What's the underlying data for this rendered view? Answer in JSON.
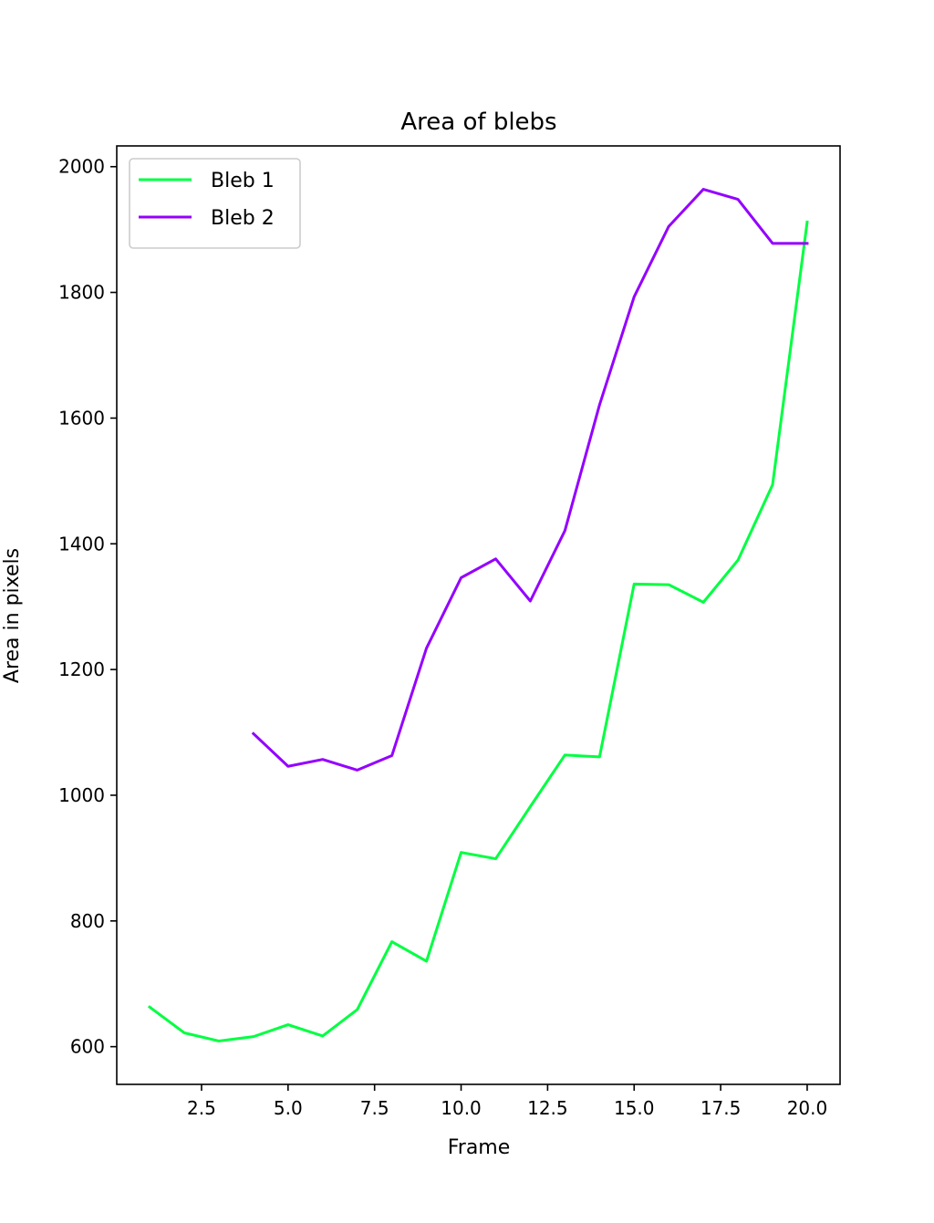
{
  "chart_data": {
    "type": "line",
    "title": "Area of blebs",
    "xlabel": "Frame",
    "ylabel": "Area in pixels",
    "xlim": [
      0.05,
      20.95
    ],
    "ylim": [
      540,
      2033
    ],
    "xticks": [
      2.5,
      5.0,
      7.5,
      10.0,
      12.5,
      15.0,
      17.5,
      20.0
    ],
    "xtick_labels": [
      "2.5",
      "5.0",
      "7.5",
      "10.0",
      "12.5",
      "15.0",
      "17.5",
      "20.0"
    ],
    "yticks": [
      600,
      800,
      1000,
      1200,
      1400,
      1600,
      1800,
      2000
    ],
    "ytick_labels": [
      "600",
      "800",
      "1000",
      "1200",
      "1400",
      "1600",
      "1800",
      "2000"
    ],
    "grid": false,
    "legend_position": "upper-left",
    "series": [
      {
        "name": "Bleb 1",
        "color": "#00ff41",
        "x": [
          1,
          2,
          3,
          4,
          5,
          6,
          7,
          8,
          9,
          10,
          11,
          12,
          13,
          14,
          15,
          16,
          17,
          18,
          19,
          20
        ],
        "y": [
          663,
          622,
          609,
          616,
          635,
          617,
          659,
          767,
          736,
          909,
          899,
          982,
          1064,
          1061,
          1336,
          1335,
          1307,
          1374,
          1494,
          1912
        ]
      },
      {
        "name": "Bleb 2",
        "color": "#9400ff",
        "x": [
          4,
          5,
          6,
          7,
          8,
          9,
          10,
          11,
          12,
          13,
          14,
          15,
          16,
          17,
          18,
          19,
          20
        ],
        "y": [
          1098,
          1046,
          1057,
          1040,
          1063,
          1234,
          1346,
          1376,
          1309,
          1421,
          1621,
          1793,
          1905,
          1964,
          1948,
          1878,
          1878
        ]
      }
    ]
  }
}
